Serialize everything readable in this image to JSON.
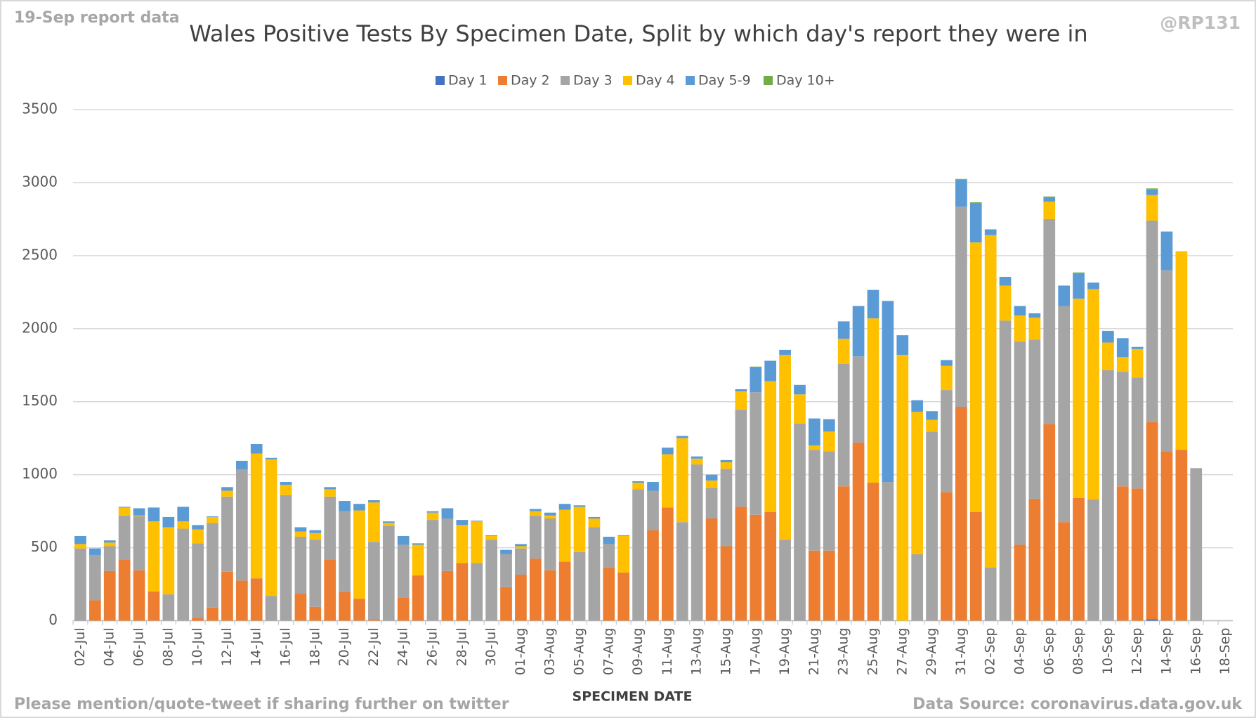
{
  "chart_data": {
    "type": "stacked_bar",
    "title": "Wales Positive Tests By Specimen Date, Split by which day's report they were in",
    "top_left_note": "19-Sep report data",
    "top_right_note": "@RP131",
    "x_label": "SPECIMEN DATE",
    "footer_left": "Please mention/quote-tweet if sharing further on twitter",
    "footer_right": "Data Source: coronavirus.data.gov.uk",
    "legend_position": "top",
    "grid": true,
    "ylim": [
      0,
      3500
    ],
    "yticks": [
      0,
      500,
      1000,
      1500,
      2000,
      2500,
      3000,
      3500
    ],
    "categories": [
      "02-Jul",
      null,
      "04-Jul",
      null,
      "06-Jul",
      null,
      "08-Jul",
      null,
      "10-Jul",
      null,
      "12-Jul",
      null,
      "14-Jul",
      null,
      "16-Jul",
      null,
      "18-Jul",
      null,
      "20-Jul",
      null,
      "22-Jul",
      null,
      "24-Jul",
      null,
      "26-Jul",
      null,
      "28-Jul",
      null,
      "30-Jul",
      null,
      "01-Aug",
      null,
      "03-Aug",
      null,
      "05-Aug",
      null,
      "07-Aug",
      null,
      "09-Aug",
      null,
      "11-Aug",
      null,
      "13-Aug",
      null,
      "15-Aug",
      null,
      "17-Aug",
      null,
      "19-Aug",
      null,
      "21-Aug",
      null,
      "23-Aug",
      null,
      "25-Aug",
      null,
      "27-Aug",
      null,
      "29-Aug",
      null,
      "31-Aug",
      null,
      "02-Sep",
      null,
      "04-Sep",
      null,
      "06-Sep",
      null,
      "08-Sep",
      null,
      "10-Sep",
      null,
      "12-Sep",
      null,
      "14-Sep",
      null,
      "16-Sep",
      null,
      "18-Sep"
    ],
    "series": [
      {
        "name": "Day 1",
        "color": "#4472c4",
        "values": [
          0,
          0,
          0,
          0,
          0,
          0,
          0,
          0,
          0,
          0,
          0,
          0,
          0,
          0,
          0,
          0,
          0,
          0,
          0,
          0,
          0,
          0,
          0,
          0,
          0,
          0,
          0,
          0,
          0,
          0,
          0,
          0,
          0,
          0,
          0,
          0,
          0,
          0,
          0,
          0,
          0,
          0,
          0,
          0,
          0,
          0,
          0,
          0,
          0,
          0,
          0,
          0,
          0,
          0,
          0,
          0,
          0,
          0,
          0,
          0,
          0,
          0,
          0,
          0,
          0,
          0,
          0,
          0,
          0,
          0,
          0,
          0,
          0,
          10,
          0,
          0,
          0,
          0,
          0
        ]
      },
      {
        "name": "Day 2",
        "color": "#ed7d31",
        "values": [
          0,
          140,
          340,
          420,
          345,
          200,
          0,
          0,
          20,
          90,
          335,
          275,
          290,
          0,
          0,
          185,
          95,
          420,
          195,
          150,
          10,
          0,
          160,
          310,
          0,
          340,
          395,
          0,
          0,
          230,
          315,
          425,
          345,
          405,
          0,
          0,
          365,
          330,
          0,
          620,
          775,
          0,
          0,
          700,
          510,
          780,
          725,
          745,
          0,
          0,
          480,
          480,
          920,
          1220,
          945,
          0,
          0,
          0,
          0,
          880,
          1465,
          745,
          0,
          0,
          520,
          835,
          1345,
          675,
          840,
          0,
          0,
          920,
          905,
          1350,
          1160,
          1170,
          0,
          0,
          0
        ]
      },
      {
        "name": "Day 3",
        "color": "#a5a5a5",
        "values": [
          495,
          310,
          170,
          300,
          370,
          0,
          180,
          630,
          510,
          580,
          515,
          760,
          0,
          170,
          860,
          390,
          460,
          430,
          555,
          0,
          530,
          650,
          360,
          0,
          690,
          360,
          0,
          395,
          555,
          225,
          180,
          295,
          355,
          0,
          470,
          640,
          160,
          0,
          900,
          270,
          0,
          675,
          1070,
          210,
          530,
          665,
          840,
          0,
          555,
          1350,
          690,
          680,
          840,
          590,
          0,
          950,
          0,
          455,
          1295,
          700,
          1370,
          0,
          365,
          2055,
          1390,
          1090,
          1405,
          1480,
          0,
          830,
          1715,
          785,
          760,
          1380,
          1240,
          0,
          1045,
          0,
          0
        ]
      },
      {
        "name": "Day 4",
        "color": "#ffc000",
        "values": [
          30,
          0,
          25,
          55,
          5,
          480,
          460,
          50,
          95,
          40,
          40,
          0,
          855,
          935,
          70,
          35,
          45,
          50,
          0,
          605,
          270,
          20,
          0,
          210,
          50,
          0,
          260,
          285,
          25,
          0,
          15,
          30,
          20,
          355,
          310,
          60,
          0,
          250,
          45,
          0,
          365,
          575,
          40,
          50,
          45,
          125,
          0,
          895,
          1265,
          200,
          30,
          135,
          170,
          0,
          1125,
          0,
          1820,
          975,
          80,
          165,
          0,
          1845,
          2275,
          240,
          180,
          150,
          120,
          0,
          1365,
          1440,
          190,
          100,
          195,
          175,
          0,
          1360,
          0,
          0,
          0
        ]
      },
      {
        "name": "Day 5-9",
        "color": "#5b9bd5",
        "values": [
          55,
          45,
          15,
          5,
          50,
          95,
          70,
          100,
          30,
          5,
          25,
          60,
          65,
          10,
          20,
          30,
          20,
          15,
          70,
          45,
          15,
          10,
          60,
          10,
          10,
          70,
          35,
          5,
          5,
          30,
          15,
          15,
          20,
          40,
          10,
          10,
          50,
          5,
          10,
          60,
          45,
          15,
          15,
          40,
          15,
          15,
          170,
          140,
          35,
          65,
          185,
          85,
          120,
          345,
          195,
          1240,
          135,
          80,
          60,
          40,
          185,
          270,
          40,
          55,
          65,
          30,
          30,
          140,
          175,
          45,
          80,
          130,
          15,
          40,
          265,
          0,
          0,
          0,
          0
        ]
      },
      {
        "name": "Day 10+",
        "color": "#70ad47",
        "values": [
          0,
          0,
          0,
          0,
          0,
          0,
          0,
          0,
          0,
          0,
          0,
          0,
          0,
          0,
          0,
          0,
          0,
          0,
          0,
          0,
          0,
          0,
          0,
          0,
          0,
          0,
          0,
          0,
          0,
          0,
          0,
          0,
          0,
          0,
          0,
          0,
          0,
          0,
          0,
          0,
          0,
          0,
          0,
          0,
          0,
          0,
          5,
          0,
          0,
          0,
          0,
          0,
          0,
          0,
          0,
          0,
          0,
          0,
          0,
          0,
          5,
          5,
          0,
          5,
          0,
          0,
          5,
          0,
          5,
          0,
          0,
          0,
          0,
          5,
          0,
          0,
          0,
          0,
          0
        ]
      }
    ]
  }
}
